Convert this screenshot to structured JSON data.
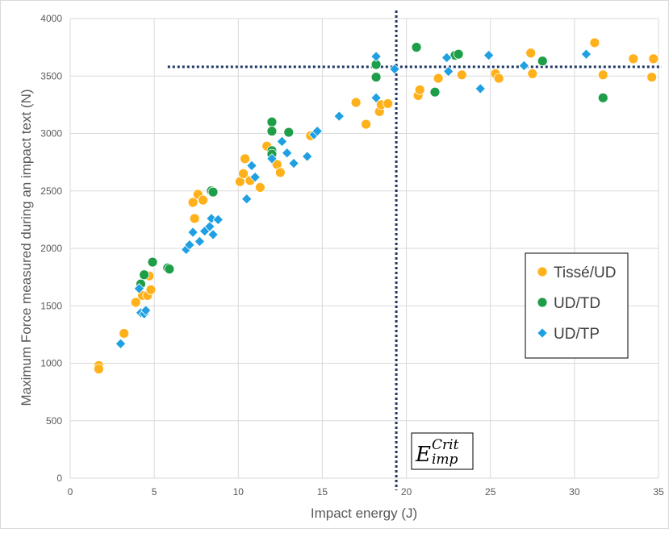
{
  "chart_data": {
    "type": "scatter",
    "title": "",
    "xlabel": "Impact energy (J)",
    "ylabel": "Maximum Force measured during an impact text (N)",
    "xlim": [
      0,
      35
    ],
    "ylim": [
      0,
      4000
    ],
    "x_ticks": [
      0,
      5,
      10,
      15,
      20,
      25,
      30,
      35
    ],
    "y_ticks": [
      0,
      500,
      1000,
      1500,
      2000,
      2500,
      3000,
      3500,
      4000
    ],
    "grid": "major both axes",
    "legend_position": "right-center",
    "series": [
      {
        "name": "Tissé/UD",
        "marker": "circle",
        "color": "#FFB11C",
        "points": [
          [
            1.7,
            980
          ],
          [
            1.7,
            950
          ],
          [
            3.2,
            1260
          ],
          [
            3.9,
            1530
          ],
          [
            4.3,
            1590
          ],
          [
            4.6,
            1590
          ],
          [
            4.8,
            1640
          ],
          [
            4.7,
            1760
          ],
          [
            7.3,
            2400
          ],
          [
            7.6,
            2470
          ],
          [
            7.9,
            2420
          ],
          [
            7.4,
            2260
          ],
          [
            10.1,
            2580
          ],
          [
            10.3,
            2650
          ],
          [
            10.4,
            2780
          ],
          [
            10.7,
            2590
          ],
          [
            11.3,
            2530
          ],
          [
            11.7,
            2890
          ],
          [
            12.3,
            2730
          ],
          [
            12.5,
            2660
          ],
          [
            14.3,
            2980
          ],
          [
            17.0,
            3270
          ],
          [
            17.6,
            3080
          ],
          [
            18.4,
            3190
          ],
          [
            18.5,
            3250
          ],
          [
            18.9,
            3260
          ],
          [
            20.7,
            3330
          ],
          [
            20.8,
            3380
          ],
          [
            21.9,
            3480
          ],
          [
            23.3,
            3510
          ],
          [
            25.3,
            3520
          ],
          [
            25.5,
            3480
          ],
          [
            27.4,
            3700
          ],
          [
            27.5,
            3520
          ],
          [
            31.2,
            3790
          ],
          [
            31.7,
            3510
          ],
          [
            33.5,
            3650
          ],
          [
            34.6,
            3490
          ],
          [
            34.7,
            3650
          ]
        ]
      },
      {
        "name": "UD/TD",
        "marker": "circle",
        "color": "#1E9E48",
        "points": [
          [
            4.2,
            1690
          ],
          [
            4.4,
            1770
          ],
          [
            4.9,
            1880
          ],
          [
            5.8,
            1830
          ],
          [
            5.9,
            1820
          ],
          [
            8.4,
            2500
          ],
          [
            8.5,
            2490
          ],
          [
            12.0,
            3100
          ],
          [
            12.0,
            3020
          ],
          [
            12.0,
            2850
          ],
          [
            12.0,
            2820
          ],
          [
            13.0,
            3010
          ],
          [
            18.2,
            3600
          ],
          [
            18.2,
            3490
          ],
          [
            20.6,
            3750
          ],
          [
            21.7,
            3360
          ],
          [
            22.9,
            3680
          ],
          [
            23.1,
            3690
          ],
          [
            28.1,
            3630
          ],
          [
            31.7,
            3310
          ]
        ]
      },
      {
        "name": "UD/TP",
        "marker": "diamond",
        "color": "#1FA0E2",
        "points": [
          [
            3.0,
            1170
          ],
          [
            4.1,
            1650
          ],
          [
            4.2,
            1440
          ],
          [
            4.4,
            1430
          ],
          [
            4.5,
            1460
          ],
          [
            6.9,
            1990
          ],
          [
            7.1,
            2030
          ],
          [
            7.3,
            2140
          ],
          [
            7.7,
            2060
          ],
          [
            8.0,
            2150
          ],
          [
            8.3,
            2190
          ],
          [
            8.4,
            2260
          ],
          [
            8.5,
            2120
          ],
          [
            8.8,
            2250
          ],
          [
            10.5,
            2430
          ],
          [
            10.8,
            2720
          ],
          [
            11.0,
            2620
          ],
          [
            12.0,
            2780
          ],
          [
            12.6,
            2930
          ],
          [
            12.9,
            2830
          ],
          [
            13.3,
            2740
          ],
          [
            14.1,
            2800
          ],
          [
            14.5,
            2990
          ],
          [
            14.7,
            3020
          ],
          [
            16.0,
            3150
          ],
          [
            18.2,
            3670
          ],
          [
            18.2,
            3310
          ],
          [
            19.3,
            3560
          ],
          [
            22.4,
            3660
          ],
          [
            22.5,
            3540
          ],
          [
            24.4,
            3390
          ],
          [
            24.9,
            3680
          ],
          [
            27.0,
            3590
          ],
          [
            30.7,
            3690
          ]
        ]
      }
    ],
    "annotations": {
      "critical_energy_x": 19.4,
      "plateau_force_y": 3580,
      "plateau_line_x_start": 5.8,
      "crit_label_main": "E",
      "crit_label_sup": "Crit",
      "crit_label_sub": "imp"
    }
  }
}
